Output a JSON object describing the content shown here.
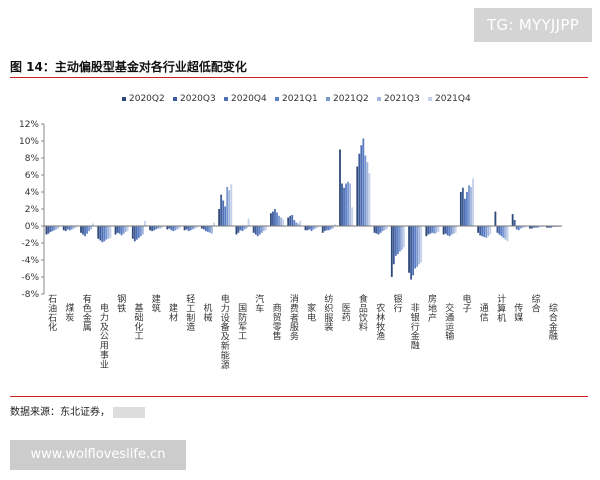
{
  "watermark_top": "TG: MYYJJPP",
  "title": "图 14：主动偏股型基金对各行业超低配变化",
  "source": "数据来源：东北证券，",
  "watermark_bottom": "www.wolfloveslife.cn",
  "chart_data": {
    "type": "bar",
    "title": "",
    "xlabel": "",
    "ylabel": "",
    "ylim": [
      -8,
      12
    ],
    "yticks": [
      -8,
      -6,
      -4,
      -2,
      0,
      2,
      4,
      6,
      8,
      10,
      12
    ],
    "ytick_labels": [
      "-8%",
      "-6%",
      "-4%",
      "-2%",
      "0%",
      "2%",
      "4%",
      "6%",
      "8%",
      "10%",
      "12%"
    ],
    "legend_position": "top",
    "grid": false,
    "categories": [
      "石油石化",
      "煤炭",
      "有色金属",
      "电力及公用事业",
      "钢铁",
      "基础化工",
      "建筑",
      "建材",
      "轻工制造",
      "机械",
      "电力设备及新能源",
      "国防军工",
      "汽车",
      "商贸零售",
      "消费者服务",
      "家电",
      "纺织服装",
      "医药",
      "食品饮料",
      "农林牧渔",
      "银行",
      "非银行金融",
      "房地产",
      "交通运输",
      "电子",
      "通信",
      "计算机",
      "传媒",
      "综合",
      "综合金融"
    ],
    "series": [
      {
        "name": "2020Q2",
        "color": "#2f4a7a",
        "values": [
          -1.0,
          -0.5,
          -0.8,
          -1.5,
          -1.0,
          -1.5,
          -0.5,
          -0.4,
          -0.5,
          -0.3,
          2.0,
          -1.0,
          -0.8,
          1.5,
          1.0,
          -0.5,
          -0.8,
          9.0,
          7.0,
          -0.8,
          -6.0,
          -5.5,
          -1.2,
          -1.0,
          4.0,
          -0.8,
          1.7,
          1.4,
          -0.3,
          -0.2
        ]
      },
      {
        "name": "2020Q3",
        "color": "#3e5b9a",
        "values": [
          -0.9,
          -0.6,
          -1.0,
          -1.7,
          -0.8,
          -1.8,
          -0.6,
          -0.3,
          -0.4,
          -0.4,
          3.7,
          -0.8,
          -1.0,
          1.7,
          1.2,
          -0.5,
          -0.6,
          5.0,
          8.5,
          -0.9,
          -4.5,
          -6.3,
          -1.0,
          -0.9,
          4.5,
          -1.1,
          -0.8,
          0.7,
          -0.3,
          -0.2
        ]
      },
      {
        "name": "2020Q4",
        "color": "#4f6fb3",
        "values": [
          -0.7,
          -0.4,
          -1.2,
          -1.9,
          -0.9,
          -1.6,
          -0.5,
          -0.5,
          -0.6,
          -0.6,
          3.0,
          -0.5,
          -1.2,
          2.0,
          1.3,
          -0.4,
          -0.5,
          4.5,
          9.5,
          -1.0,
          -3.5,
          -5.8,
          -0.9,
          -1.1,
          3.2,
          -1.2,
          -1.0,
          -0.4,
          -0.2,
          -0.2
        ]
      },
      {
        "name": "2021Q1",
        "color": "#5b7fc7",
        "values": [
          -0.6,
          -0.5,
          -0.9,
          -1.8,
          -1.1,
          -1.4,
          -0.4,
          -0.6,
          -0.5,
          -0.7,
          2.3,
          -0.6,
          -1.0,
          1.6,
          0.7,
          -0.6,
          -0.5,
          5.0,
          10.3,
          -0.8,
          -3.3,
          -5.0,
          -0.8,
          -1.2,
          4.0,
          -1.3,
          -1.2,
          -0.5,
          -0.2,
          -0.1
        ]
      },
      {
        "name": "2021Q2",
        "color": "#7b97cf",
        "values": [
          -0.5,
          -0.4,
          -0.6,
          -1.6,
          -0.9,
          -1.2,
          -0.3,
          -0.5,
          -0.4,
          -0.8,
          4.6,
          -0.4,
          -0.8,
          1.2,
          0.4,
          -0.4,
          -0.4,
          5.2,
          8.3,
          -0.6,
          -3.0,
          -4.8,
          -0.9,
          -1.0,
          4.8,
          -1.4,
          -1.4,
          -0.3,
          -0.2,
          -0.1
        ]
      },
      {
        "name": "2021Q3",
        "color": "#a2b6dd",
        "values": [
          -0.4,
          -0.3,
          -0.4,
          -1.5,
          -0.7,
          -1.0,
          -0.3,
          -0.4,
          -0.3,
          -0.9,
          4.2,
          -0.3,
          -0.6,
          1.0,
          0.3,
          -0.3,
          -0.3,
          5.0,
          7.5,
          -0.5,
          -2.8,
          -4.5,
          -0.8,
          -0.9,
          4.6,
          -1.2,
          -1.6,
          -0.2,
          -0.1,
          -0.1
        ]
      },
      {
        "name": "2021Q4",
        "color": "#c5d1ea",
        "values": [
          -0.3,
          -0.2,
          0.3,
          -1.4,
          -0.6,
          0.6,
          -0.2,
          -0.3,
          -0.2,
          0.4,
          4.9,
          0.9,
          -0.5,
          0.8,
          0.6,
          -0.2,
          0.2,
          2.2,
          6.2,
          -0.4,
          -2.5,
          -4.3,
          -0.7,
          -0.8,
          5.6,
          -1.0,
          -1.8,
          -0.2,
          -0.1,
          -0.1
        ]
      }
    ]
  }
}
